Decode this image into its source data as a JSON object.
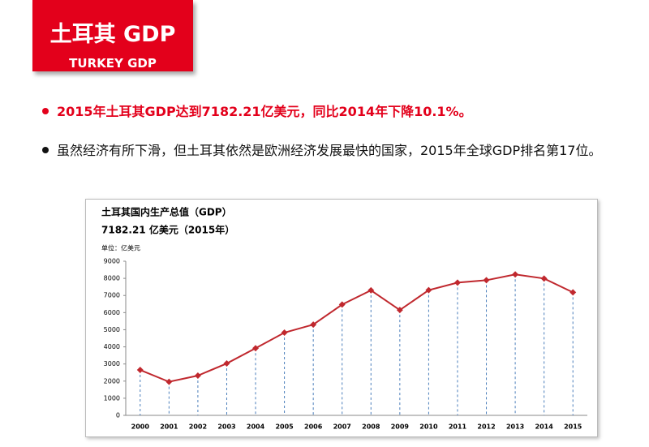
{
  "header": {
    "title": "土耳其 GDP",
    "subtitle": "TURKEY GDP"
  },
  "bullets": [
    "2015年土耳其GDP达到7182.21亿美元，同比2014年下降10.1%。",
    "虽然经济有所下滑，但土耳其依然是欧洲经济发展最快的国家，2015年全球GDP排名第17位。"
  ],
  "chart_data": {
    "type": "line",
    "title": "土耳其国内生产总值（GDP）",
    "subtitle": "7182.21 亿美元（2015年）",
    "unit_label": "单位：亿美元",
    "categories": [
      "2000",
      "2001",
      "2002",
      "2003",
      "2004",
      "2005",
      "2006",
      "2007",
      "2008",
      "2009",
      "2010",
      "2011",
      "2012",
      "2013",
      "2014",
      "2015"
    ],
    "values": [
      2650,
      1960,
      2320,
      3030,
      3920,
      4830,
      5300,
      6470,
      7300,
      6150,
      7310,
      7750,
      7890,
      8230,
      7990,
      7182.21
    ],
    "color": "#c0282e",
    "drop_line_color": "#4a7ebb",
    "ylim": [
      0,
      9000
    ],
    "yticks": [
      0,
      1000,
      2000,
      3000,
      4000,
      5000,
      6000,
      7000,
      8000,
      9000
    ]
  }
}
